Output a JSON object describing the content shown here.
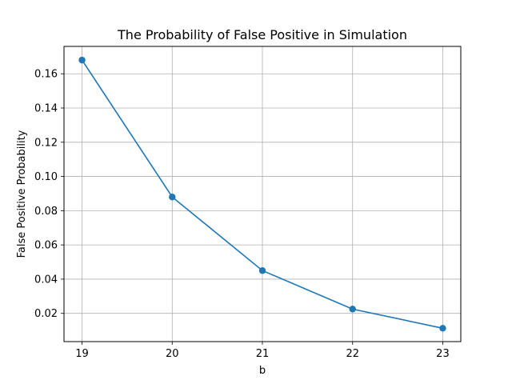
{
  "chart_data": {
    "type": "line",
    "title": "The Probability of False Positive in Simulation",
    "xlabel": "b",
    "ylabel": "False Positive Probability",
    "x": [
      19,
      20,
      21,
      22,
      23
    ],
    "x_ticks": [
      "19",
      "20",
      "21",
      "22",
      "23"
    ],
    "y_ticks": [
      "0.02",
      "0.04",
      "0.06",
      "0.08",
      "0.10",
      "0.12",
      "0.14",
      "0.16"
    ],
    "xlim": [
      18.8,
      23.2
    ],
    "ylim": [
      0.0035,
      0.176
    ],
    "grid": true,
    "markers": true,
    "series": [
      {
        "values": [
          0.168,
          0.088,
          0.045,
          0.0225,
          0.0113
        ],
        "color": "#1f77b4"
      }
    ]
  }
}
